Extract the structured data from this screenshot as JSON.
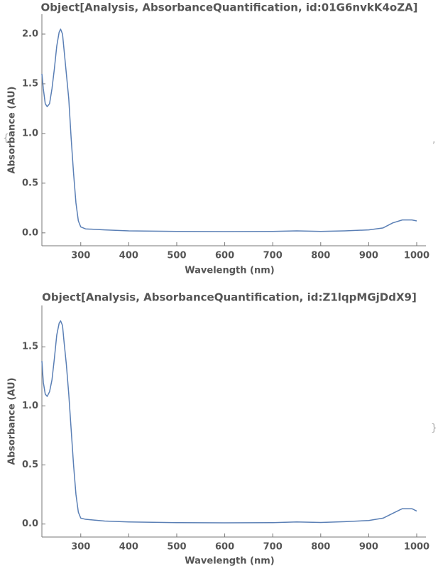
{
  "chart_data": [
    {
      "type": "line",
      "title": "Object[Analysis, AbsorbanceQuantification, id:01G6nvkK4oZA]",
      "x_label": "Wavelength  (nm)",
      "y_label": "Absorbance  (AU)",
      "xlim": [
        219,
        1000
      ],
      "ylim": [
        -0.13,
        2.2
      ],
      "xticks": [
        300,
        400,
        500,
        600,
        700,
        800,
        900,
        1000
      ],
      "yticks": [
        {
          "value": 0,
          "label": "0.0"
        },
        0.5,
        {
          "value": 1,
          "label": "1.0"
        },
        1.5,
        {
          "value": 2,
          "label": "2.0"
        }
      ],
      "x": [
        219,
        222,
        226,
        230,
        235,
        240,
        245,
        250,
        255,
        258,
        262,
        265,
        270,
        275,
        280,
        285,
        290,
        295,
        300,
        310,
        350,
        400,
        500,
        600,
        700,
        750,
        800,
        850,
        900,
        930,
        950,
        970,
        990,
        1000
      ],
      "series": [
        {
          "name": "Absorbance",
          "color": "#5a7fb5",
          "values": [
            1.6,
            1.45,
            1.3,
            1.27,
            1.3,
            1.45,
            1.65,
            1.88,
            2.02,
            2.05,
            2.0,
            1.85,
            1.6,
            1.35,
            0.95,
            0.6,
            0.3,
            0.12,
            0.06,
            0.04,
            0.03,
            0.02,
            0.015,
            0.013,
            0.015,
            0.02,
            0.015,
            0.02,
            0.03,
            0.05,
            0.1,
            0.13,
            0.13,
            0.12
          ]
        }
      ]
    },
    {
      "type": "line",
      "title": "Object[Analysis, AbsorbanceQuantification, id:Z1lqpMGjDdX9]",
      "x_label": "Wavelength  (nm)",
      "y_label": "Absorbance  (AU)",
      "xlim": [
        219,
        1000
      ],
      "ylim": [
        -0.11,
        1.85
      ],
      "xticks": [
        300,
        400,
        500,
        600,
        700,
        800,
        900,
        1000
      ],
      "yticks": [
        {
          "value": 0,
          "label": "0.0"
        },
        0.5,
        {
          "value": 1,
          "label": "1.0"
        },
        1.5
      ],
      "x": [
        219,
        222,
        226,
        230,
        235,
        240,
        245,
        250,
        255,
        258,
        262,
        265,
        270,
        275,
        280,
        285,
        290,
        295,
        300,
        310,
        350,
        400,
        500,
        600,
        700,
        750,
        800,
        850,
        900,
        930,
        950,
        970,
        990,
        1000
      ],
      "series": [
        {
          "name": "Absorbance",
          "color": "#5a7fb5",
          "values": [
            1.38,
            1.2,
            1.1,
            1.08,
            1.12,
            1.22,
            1.4,
            1.6,
            1.7,
            1.72,
            1.68,
            1.55,
            1.35,
            1.1,
            0.8,
            0.5,
            0.25,
            0.1,
            0.05,
            0.04,
            0.025,
            0.018,
            0.012,
            0.01,
            0.012,
            0.018,
            0.013,
            0.02,
            0.03,
            0.05,
            0.09,
            0.13,
            0.13,
            0.11
          ]
        }
      ]
    }
  ],
  "brackets": {
    "open": "{",
    "separator": ",",
    "close": "}"
  }
}
